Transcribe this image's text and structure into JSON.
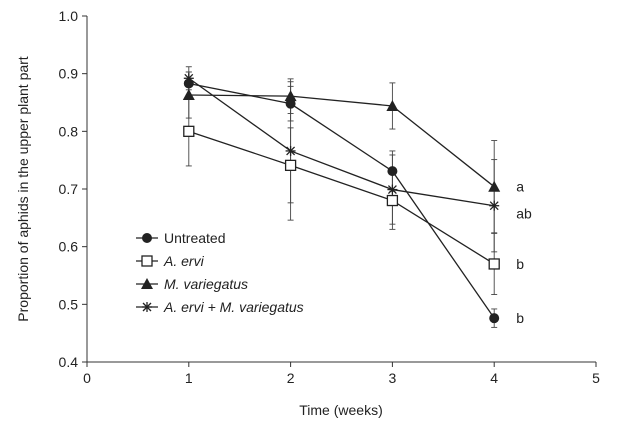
{
  "chart_data": {
    "type": "line",
    "xlabel": "Time (weeks)",
    "ylabel": "Proportion of aphids in the upper plant part",
    "xlim": [
      0,
      5
    ],
    "ylim": [
      0.4,
      1.0
    ],
    "xticks": [
      "0",
      "1",
      "2",
      "3",
      "4",
      "5"
    ],
    "yticks": [
      "0.4",
      "0.5",
      "0.6",
      "0.7",
      "0.8",
      "0.9",
      "1.0"
    ],
    "legend_position": "bottom-left",
    "grid": false,
    "x": [
      1,
      2,
      3,
      4
    ],
    "series": [
      {
        "name": "Untreated",
        "marker": "circle-filled",
        "italic": false,
        "values": [
          0.883,
          0.848,
          0.731,
          0.476
        ],
        "errors": [
          0.02,
          0.03,
          0.035,
          0.016
        ]
      },
      {
        "name": "A. ervi",
        "marker": "square-open",
        "italic": true,
        "values": [
          0.8,
          0.741,
          0.68,
          0.57
        ],
        "errors": [
          0.06,
          0.065,
          0.05,
          0.053
        ]
      },
      {
        "name": "M. variegatus",
        "marker": "triangle-filled",
        "italic": true,
        "values": [
          0.863,
          0.861,
          0.844,
          0.704
        ],
        "errors": [
          0.04,
          0.03,
          0.04,
          0.08
        ]
      },
      {
        "name": "A. ervi + M. variegatus",
        "marker": "star",
        "italic": true,
        "values": [
          0.892,
          0.766,
          0.699,
          0.671
        ],
        "errors": [
          0.02,
          0.12,
          0.06,
          0.08
        ]
      }
    ],
    "annotations": [
      {
        "text": "a",
        "x": 4,
        "y": 0.704
      },
      {
        "text": "ab",
        "x": 4,
        "y": 0.671
      },
      {
        "text": "b",
        "x": 4,
        "y": 0.57
      },
      {
        "text": "b",
        "x": 4,
        "y": 0.476
      }
    ]
  }
}
